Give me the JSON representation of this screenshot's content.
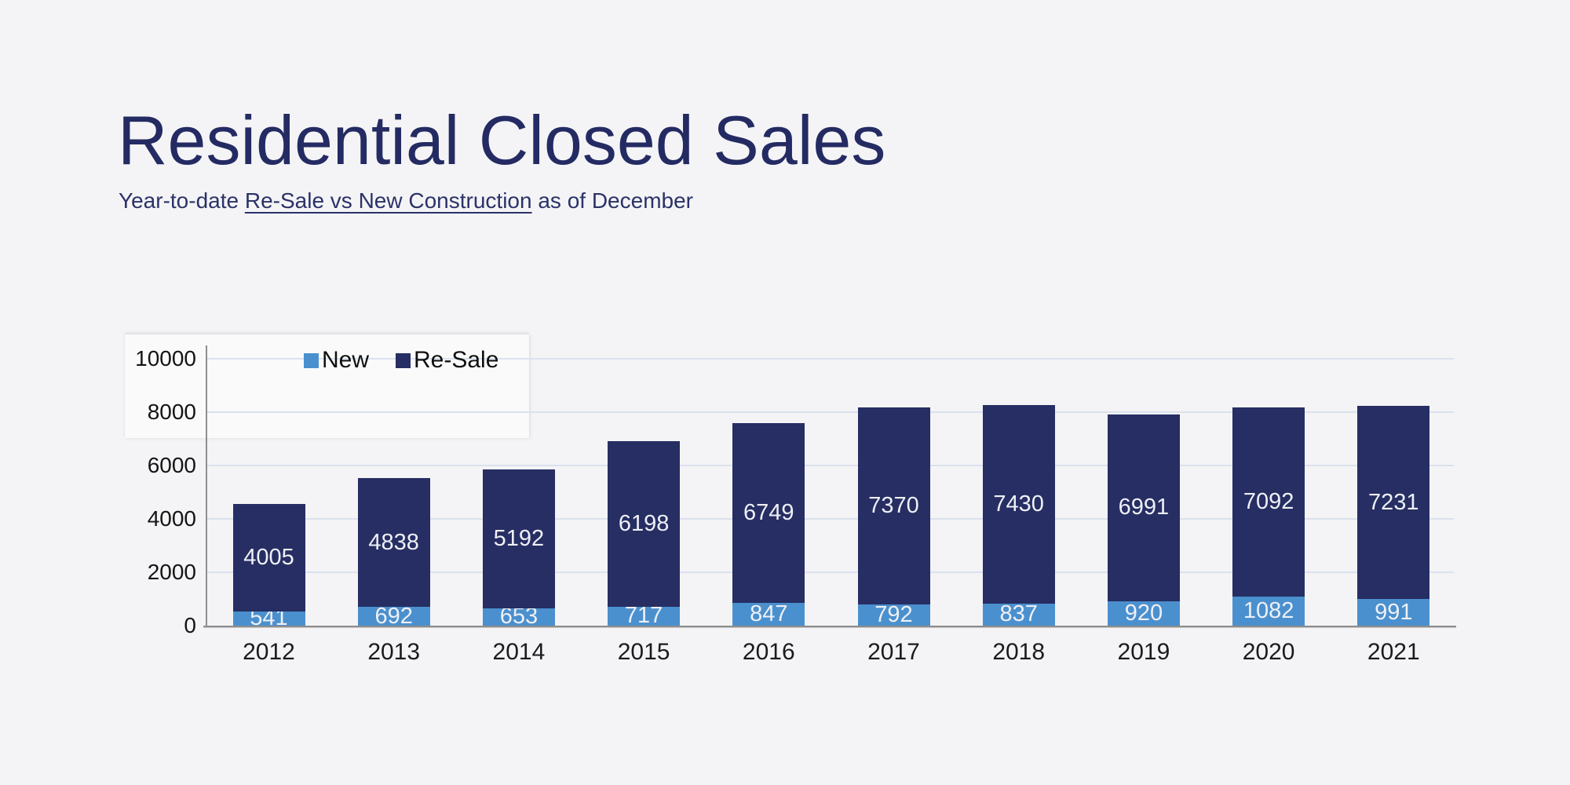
{
  "header": {
    "title": "Residential Closed Sales",
    "subtitle_prefix": "Year-to-date ",
    "subtitle_underlined": "Re-Sale vs New Construction",
    "subtitle_suffix": " as of December"
  },
  "colors": {
    "background": "#f4f4f6",
    "title_text": "#242b63",
    "gridline": "#dbe1ee",
    "axis_line": "#8d8d8d",
    "bar_label_text": "#eef0f6",
    "new_series": "#4b90ce",
    "resale_series": "#262e63"
  },
  "chart_data": {
    "type": "bar",
    "stacked": true,
    "title": "Residential Closed Sales",
    "subtitle": "Year-to-date Re-Sale vs New Construction as of December",
    "categories": [
      "2012",
      "2013",
      "2014",
      "2015",
      "2016",
      "2017",
      "2018",
      "2019",
      "2020",
      "2021"
    ],
    "series": [
      {
        "name": "New",
        "color": "#4b90ce",
        "values": [
          541,
          692,
          653,
          717,
          847,
          792,
          837,
          920,
          1082,
          991
        ]
      },
      {
        "name": "Re-Sale",
        "color": "#262e63",
        "values": [
          4005,
          4838,
          5192,
          6198,
          6749,
          7370,
          7430,
          6991,
          7092,
          7231
        ]
      }
    ],
    "xlabel": "",
    "ylabel": "",
    "ylim": [
      0,
      10000
    ],
    "yticks": [
      0,
      2000,
      4000,
      6000,
      8000,
      10000
    ],
    "grid": true,
    "legend_position": "top-left-inside",
    "bar_labels_shown": true
  }
}
